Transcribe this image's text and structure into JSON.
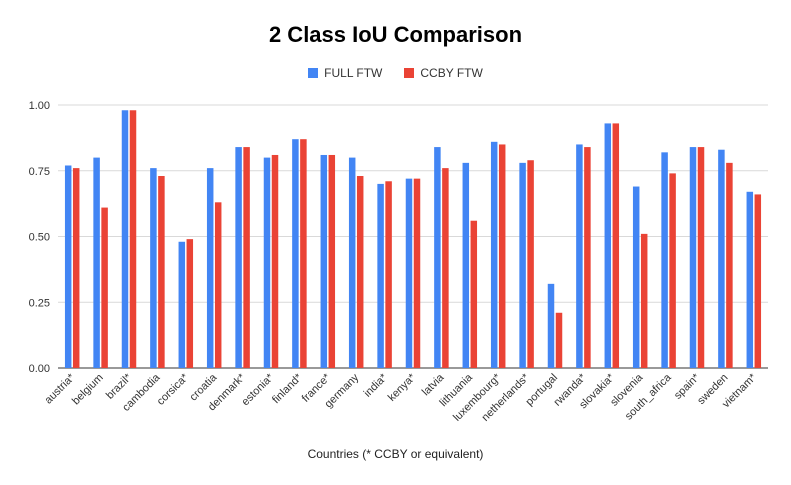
{
  "chart_data": {
    "type": "bar",
    "title": "2 Class IoU Comparison",
    "xlabel": "Countries (* CCBY or equivalent)",
    "ylabel": "",
    "ylim": [
      0,
      1.0
    ],
    "yticks": [
      "0.00",
      "0.25",
      "0.50",
      "0.75",
      "1.00"
    ],
    "ytick_values": [
      0,
      0.25,
      0.5,
      0.75,
      1.0
    ],
    "grid": true,
    "legend_position": "top",
    "categories": [
      "austria*",
      "belgium",
      "brazil*",
      "cambodia",
      "corsica*",
      "croatia",
      "denmark*",
      "estonia*",
      "finland*",
      "france*",
      "germany",
      "india*",
      "kenya*",
      "latvia",
      "lithuania",
      "luxembourg*",
      "netherlands*",
      "portugal",
      "rwanda*",
      "slovakia*",
      "slovenia",
      "south_africa",
      "spain*",
      "sweden",
      "vietnam*"
    ],
    "series": [
      {
        "name": "FULL FTW",
        "color": "#4285f4",
        "values": [
          0.77,
          0.8,
          0.98,
          0.76,
          0.48,
          0.76,
          0.84,
          0.8,
          0.87,
          0.81,
          0.8,
          0.7,
          0.72,
          0.84,
          0.78,
          0.86,
          0.78,
          0.32,
          0.85,
          0.93,
          0.69,
          0.82,
          0.84,
          0.83,
          0.67
        ]
      },
      {
        "name": "CCBY FTW",
        "color": "#ea4335",
        "values": [
          0.76,
          0.61,
          0.98,
          0.73,
          0.49,
          0.63,
          0.84,
          0.81,
          0.87,
          0.81,
          0.73,
          0.71,
          0.72,
          0.76,
          0.56,
          0.85,
          0.79,
          0.21,
          0.84,
          0.93,
          0.51,
          0.74,
          0.84,
          0.78,
          0.66
        ]
      }
    ]
  }
}
